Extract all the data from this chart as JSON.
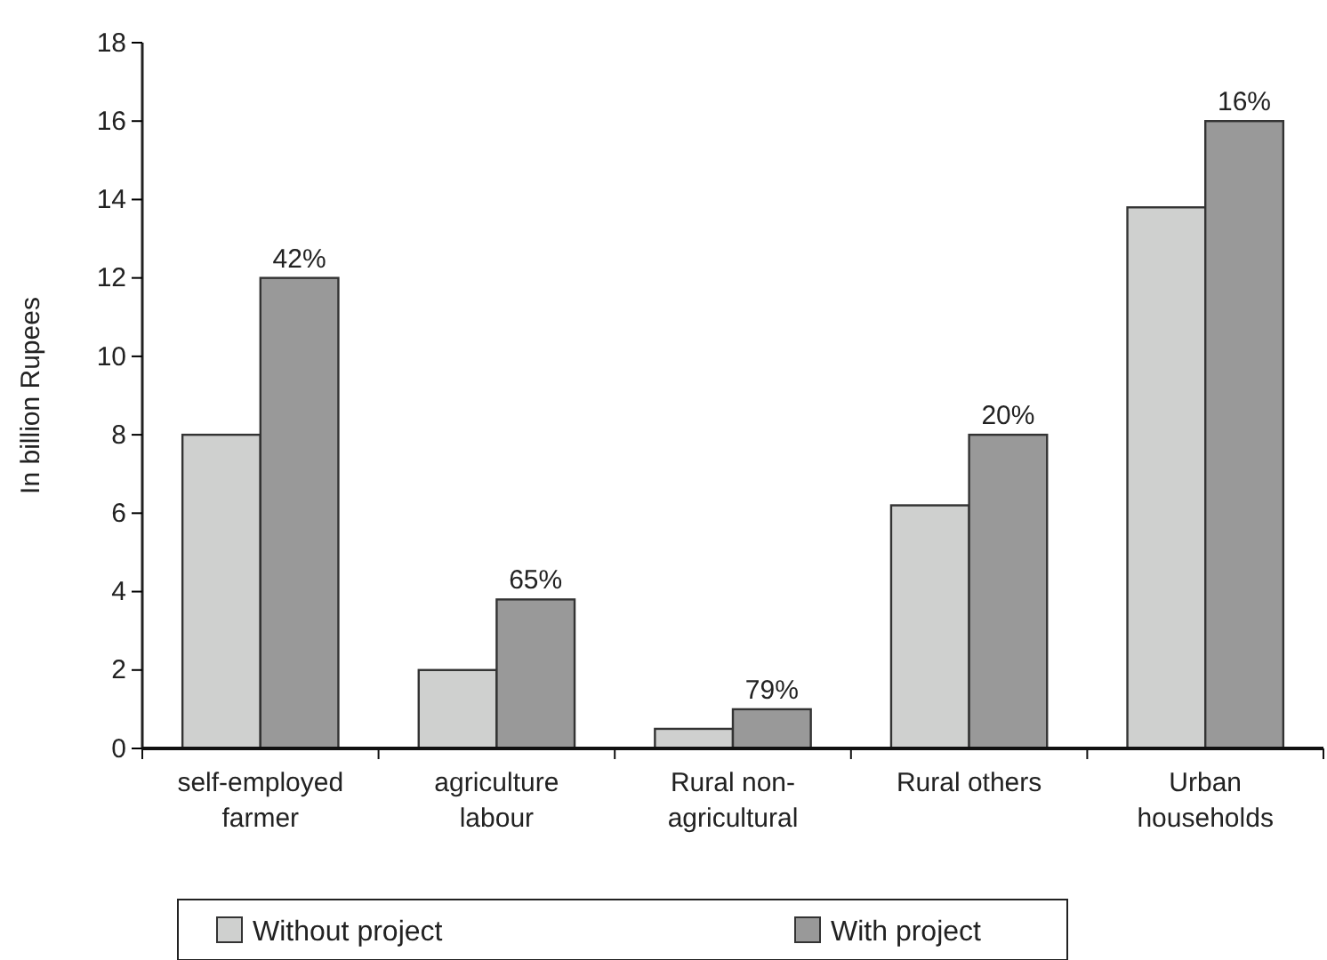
{
  "chart_data": {
    "type": "bar",
    "ylabel": "In billion Rupees",
    "categories": [
      "self-employed farmer",
      "agriculture labour",
      "Rural non-agricultural",
      "Rural others",
      "Urban households"
    ],
    "series": [
      {
        "name": "Without project",
        "color": "#cfd0cf",
        "values": [
          8,
          2,
          0.5,
          6.2,
          13.8
        ]
      },
      {
        "name": "With project",
        "color": "#999999",
        "values": [
          12,
          3.8,
          1,
          8,
          16
        ]
      }
    ],
    "annotations": [
      {
        "text": "42%",
        "x": "self-employed farmer",
        "y": 12
      },
      {
        "text": "65%",
        "x": "agriculture labour",
        "y": 3.8
      },
      {
        "text": "79%",
        "x": "Rural non-agricultural",
        "y": 1
      },
      {
        "text": "20%",
        "x": "Rural others",
        "y": 8
      },
      {
        "text": "16%",
        "x": "Urban households",
        "y": 16
      }
    ],
    "ylim": [
      0,
      18
    ],
    "yticks": [
      0,
      2,
      4,
      6,
      8,
      10,
      12,
      14,
      16,
      18
    ],
    "grid": false,
    "legend": "bottom"
  }
}
